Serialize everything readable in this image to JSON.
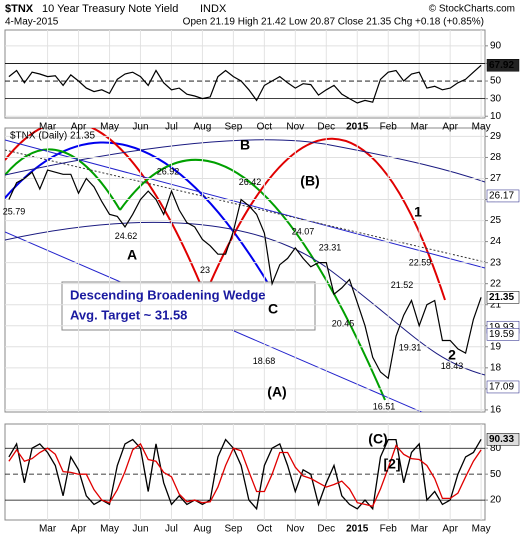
{
  "header": {
    "symbol": "$TNX",
    "name": "10 Year Treasury Note Yield",
    "exchange": "INDX",
    "date": "4-May-2015",
    "quote": "Open 21.19 High 21.42 Low 20.87 Close 21.35 Chg +0.18 (+0.85%)",
    "copyright": "© StockCharts.com"
  },
  "chart_data": [
    {
      "type": "line",
      "color": "#000000",
      "categories": [
        null,
        null,
        null,
        null,
        null,
        "Mar",
        null,
        null,
        null,
        "Apr",
        null,
        null,
        null,
        "May",
        null,
        null,
        null,
        "Jun",
        null,
        null,
        null,
        "Jul",
        null,
        null,
        null,
        "Aug",
        null,
        null,
        null,
        "Sep",
        null,
        null,
        null,
        "Oct",
        null,
        null,
        null,
        "Nov",
        null,
        null,
        null,
        "Dec",
        null,
        null,
        null,
        "2015",
        null,
        null,
        null,
        "Feb",
        null,
        null,
        null,
        "Mar",
        null,
        null,
        null,
        "Apr",
        null,
        null,
        null,
        "May"
      ],
      "values": [
        55,
        62,
        48,
        60,
        58,
        55,
        56,
        45,
        57,
        50,
        42,
        38,
        40,
        36,
        52,
        58,
        60,
        55,
        45,
        62,
        48,
        40,
        42,
        35,
        33,
        30,
        32,
        55,
        62,
        55,
        50,
        40,
        28,
        45,
        50,
        55,
        48,
        42,
        47,
        46,
        34,
        40,
        45,
        35,
        30,
        25,
        28,
        26,
        52,
        60,
        62,
        50,
        58,
        60,
        42,
        44,
        40,
        42,
        48,
        52,
        60,
        67.92
      ],
      "ylim": [
        8,
        108
      ],
      "yticks": [
        10,
        30,
        50,
        70,
        90
      ],
      "grid": true
    },
    {
      "type": "line",
      "color": "#000000",
      "legend": "$TNX (Daily) 21.35",
      "values": [
        26.0,
        26.8,
        27.0,
        27.3,
        26.5,
        27.4,
        27.3,
        27.2,
        27.2,
        26.3,
        27.0,
        26.6,
        25.9,
        25.3,
        25.2,
        24.7,
        25.3,
        26.0,
        26.4,
        26.0,
        25.3,
        26.4,
        25.5,
        24.9,
        24.7,
        24.1,
        23.8,
        23.4,
        23.4,
        24.5,
        26.0,
        25.7,
        25.3,
        24.4,
        22.0,
        22.9,
        23.2,
        23.7,
        23.2,
        22.8,
        23.0,
        23.0,
        21.5,
        21.8,
        22.2,
        21.1,
        20.0,
        18.5,
        17.8,
        17.5,
        19.5,
        20.5,
        21.2,
        20.0,
        21.0,
        21.2,
        19.3,
        19.3,
        18.9,
        18.7,
        20.3,
        21.35
      ],
      "ylim": [
        15.9,
        29.4
      ],
      "yticks": [
        16,
        17,
        18,
        19,
        20,
        21,
        22,
        23,
        24,
        25,
        26,
        27,
        28,
        29
      ],
      "grid": true,
      "levels": [
        26.17,
        19.93,
        19.59,
        17.09
      ],
      "price_labels": [
        25.79,
        24.62,
        26.92,
        23.0,
        26.42,
        18.68,
        24.07,
        23.31,
        20.45,
        16.51,
        21.52,
        19.31,
        22.59,
        18.43
      ],
      "annotations": [
        "A",
        "B",
        "C",
        "(A)",
        "(B)",
        "(C)",
        "1",
        "2",
        "[2]"
      ],
      "wedge_text": [
        "Descending Broadening Wedge",
        "Avg. Target ~ 31.58"
      ]
    },
    {
      "type": "line",
      "categories": [
        null,
        null,
        null,
        null,
        null,
        "Mar",
        null,
        null,
        null,
        "Apr",
        null,
        null,
        null,
        "May",
        null,
        null,
        null,
        "Jun",
        null,
        null,
        null,
        "Jul",
        null,
        null,
        null,
        "Aug",
        null,
        null,
        null,
        "Sep",
        null,
        null,
        null,
        "Oct",
        null,
        null,
        null,
        "Nov",
        null,
        null,
        null,
        "Dec",
        null,
        null,
        null,
        "2015",
        null,
        null,
        null,
        "Feb",
        null,
        null,
        null,
        "Mar",
        null,
        null,
        null,
        "Apr",
        null,
        null,
        null,
        "May"
      ],
      "series": [
        {
          "color": "#000000",
          "values": [
            70,
            85,
            40,
            80,
            85,
            75,
            60,
            25,
            70,
            55,
            25,
            15,
            20,
            15,
            60,
            85,
            90,
            80,
            30,
            85,
            40,
            15,
            25,
            15,
            20,
            15,
            20,
            70,
            90,
            80,
            60,
            20,
            10,
            60,
            80,
            85,
            60,
            30,
            55,
            50,
            15,
            40,
            60,
            25,
            15,
            10,
            20,
            10,
            70,
            90,
            90,
            40,
            75,
            85,
            20,
            30,
            15,
            20,
            50,
            70,
            75,
            90.33
          ]
        },
        {
          "color": "#e00000",
          "values": [
            65,
            78,
            65,
            68,
            75,
            80,
            73,
            53,
            52,
            50,
            50,
            32,
            20,
            17,
            32,
            53,
            78,
            85,
            67,
            65,
            52,
            47,
            27,
            18,
            20,
            17,
            18,
            35,
            60,
            80,
            77,
            53,
            30,
            30,
            50,
            75,
            75,
            58,
            48,
            45,
            40,
            35,
            38,
            42,
            33,
            17,
            15,
            13,
            33,
            57,
            83,
            73,
            68,
            67,
            60,
            45,
            22,
            22,
            28,
            47,
            65,
            78
          ]
        }
      ],
      "ylim": [
        -3,
        108
      ],
      "yticks": [
        20,
        50,
        80
      ],
      "grid": true
    }
  ]
}
